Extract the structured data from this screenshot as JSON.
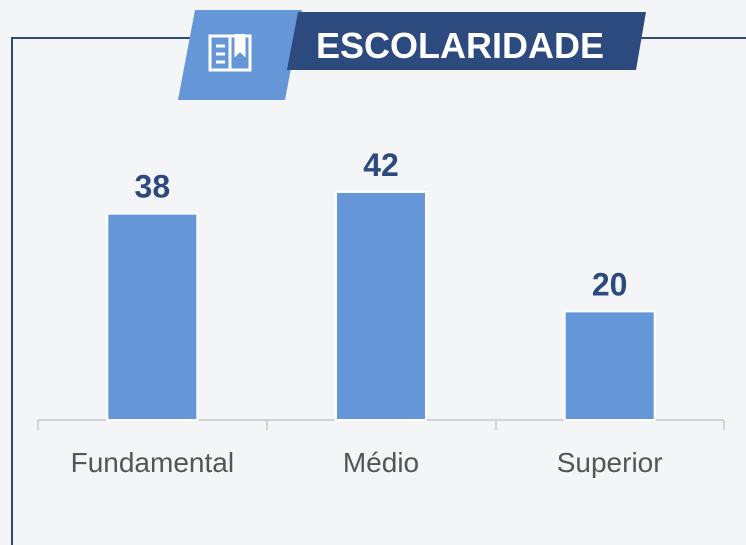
{
  "chart_data": {
    "type": "bar",
    "title": "ESCOLARIDADE",
    "categories": [
      "Fundamental",
      "Médio",
      "Superior"
    ],
    "values": [
      38,
      42,
      20
    ],
    "color": "#6496d8"
  }
}
